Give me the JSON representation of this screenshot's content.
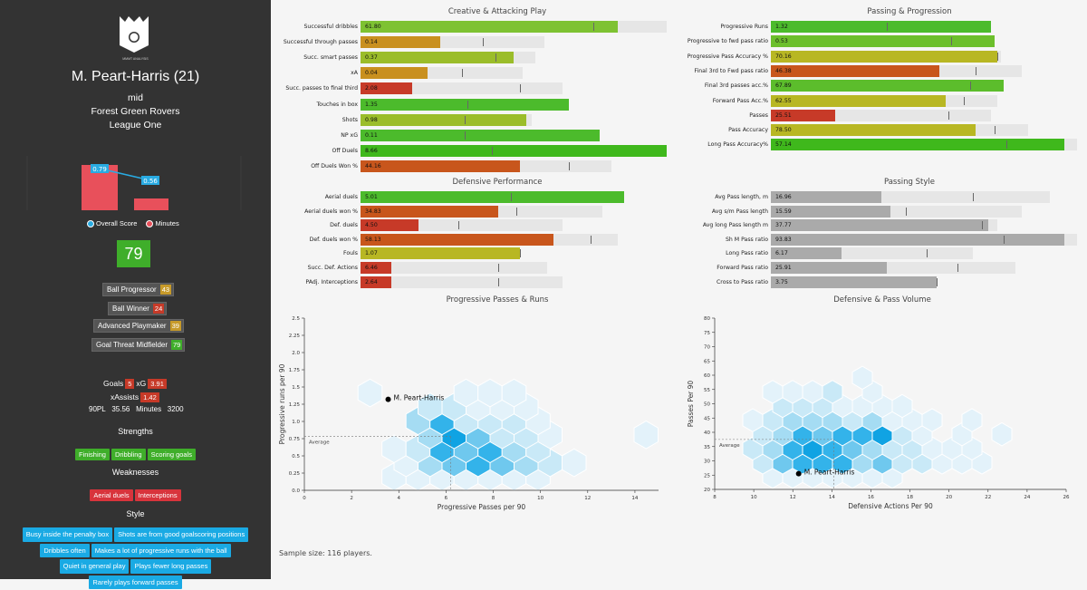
{
  "player": {
    "name": "M. Peart-Harris (21)",
    "position": "mid",
    "club": "Forest Green Rovers",
    "league": "League One",
    "overall": "79",
    "logo_text": "MMMT ANALYSIS"
  },
  "mini_chart": {
    "values": [
      0.79,
      0.56
    ],
    "score_labels": [
      "0.79",
      "0.56"
    ],
    "legend": [
      "Overall Score",
      "Minutes"
    ],
    "colors": {
      "score": "#29abe2",
      "minutes": "#e8505b"
    }
  },
  "roles": [
    {
      "label": "Ball Progressor",
      "value": "43",
      "color": "#c79a2a"
    },
    {
      "label": "Ball Winner",
      "value": "24",
      "color": "#c73a28"
    },
    {
      "label": "Advanced Playmaker",
      "value": "39",
      "color": "#c79a2a"
    },
    {
      "label": "Goal Threat Midfielder",
      "value": "79",
      "color": "#3fae2a"
    }
  ],
  "stats": {
    "goals_label": "Goals",
    "goals": "5",
    "xg_label": "xG",
    "xg": "3.91",
    "xassists_label": "xAssists",
    "xassists": "1.42",
    "p90_label": "90PL",
    "p90": "35.56",
    "minutes_label": "Minutes",
    "minutes": "3200"
  },
  "strengths_title": "Strengths",
  "strengths": [
    "Finishing",
    "Dribbling",
    "Scoring goals"
  ],
  "weaknesses_title": "Weaknesses",
  "weaknesses": [
    "Aerial duels",
    "Interceptions"
  ],
  "style_title": "Style",
  "style_tags": [
    "Busy inside the penalty box",
    "Shots are from good goalscoring positions",
    "Dribbles often",
    "Makes a lot of progressive runs with the ball",
    "Quiet in general play",
    "Plays fewer long passes",
    "Rarely plays forward passes"
  ],
  "panels": [
    {
      "title": "Creative & Attacking Play",
      "rows": [
        {
          "label": "Successful dribbles",
          "value": "61.80",
          "pct": 0.84,
          "avg": 0.76,
          "track": 1.0,
          "color": "#7ec232"
        },
        {
          "label": "Successful through passes",
          "value": "0.14",
          "pct": 0.26,
          "avg": 0.4,
          "track": 0.6,
          "color": "#c9901f"
        },
        {
          "label": "Succ. smart passes",
          "value": "0.37",
          "pct": 0.5,
          "avg": 0.44,
          "track": 0.57,
          "color": "#9bbd2a"
        },
        {
          "label": "xA",
          "value": "0.04",
          "pct": 0.22,
          "avg": 0.33,
          "track": 0.53,
          "color": "#c9901f"
        },
        {
          "label": "Succ. passes to final third",
          "value": "2.08",
          "pct": 0.17,
          "avg": 0.52,
          "track": 0.66,
          "color": "#c73a28"
        },
        {
          "label": "Touches in box",
          "value": "1.35",
          "pct": 0.68,
          "avg": 0.35,
          "track": 0.68,
          "color": "#4cbb2c"
        },
        {
          "label": "Shots",
          "value": "0.98",
          "pct": 0.54,
          "avg": 0.34,
          "track": 0.56,
          "color": "#9bbd2a"
        },
        {
          "label": "NP xG",
          "value": "0.11",
          "pct": 0.78,
          "avg": 0.34,
          "track": 0.78,
          "color": "#4cbb2c"
        },
        {
          "label": "Off Duels",
          "value": "8.66",
          "pct": 1.0,
          "avg": 0.43,
          "track": 1.0,
          "color": "#3fb81c"
        },
        {
          "label": "Off Duels Won %",
          "value": "44.16",
          "pct": 0.52,
          "avg": 0.68,
          "track": 0.82,
          "color": "#c8561c"
        }
      ]
    },
    {
      "title": "Passing & Progression",
      "rows": [
        {
          "label": "Progressive Runs",
          "value": "1.32",
          "pct": 0.72,
          "avg": 0.38,
          "track": 0.72,
          "color": "#4cbb2c"
        },
        {
          "label": "Progressive to fwd pass ratio",
          "value": "0.53",
          "pct": 0.73,
          "avg": 0.59,
          "track": 0.73,
          "color": "#6cbf2c"
        },
        {
          "label": "Progressive Pass Accuracy %",
          "value": "70.16",
          "pct": 0.74,
          "avg": 0.74,
          "track": 0.75,
          "color": "#b8b723"
        },
        {
          "label": "Final 3rd to Fwd pass ratio",
          "value": "46.38",
          "pct": 0.55,
          "avg": 0.67,
          "track": 0.82,
          "color": "#c8561c"
        },
        {
          "label": "Final 3rd passes acc.%",
          "value": "67.89",
          "pct": 0.76,
          "avg": 0.65,
          "track": 0.76,
          "color": "#5cbd2c"
        },
        {
          "label": "Forward Pass Acc.%",
          "value": "62.55",
          "pct": 0.57,
          "avg": 0.63,
          "track": 0.74,
          "color": "#b8b723"
        },
        {
          "label": "Passes",
          "value": "25.51",
          "pct": 0.21,
          "avg": 0.58,
          "track": 0.72,
          "color": "#c73a28"
        },
        {
          "label": "Pass Accuracy",
          "value": "78.50",
          "pct": 0.67,
          "avg": 0.73,
          "track": 0.84,
          "color": "#b8b723"
        },
        {
          "label": "Long Pass Accuracy%",
          "value": "57.14",
          "pct": 0.96,
          "avg": 0.77,
          "track": 1.0,
          "color": "#3fb81c"
        }
      ]
    },
    {
      "title": "Defensive Performance",
      "rows": [
        {
          "label": "Aerial duels",
          "value": "5.01",
          "pct": 0.86,
          "avg": 0.49,
          "track": 0.86,
          "color": "#4cbb2c"
        },
        {
          "label": "Aerial duels won %",
          "value": "34.83",
          "pct": 0.45,
          "avg": 0.51,
          "track": 0.79,
          "color": "#c8561c"
        },
        {
          "label": "Def. duels",
          "value": "4.50",
          "pct": 0.19,
          "avg": 0.32,
          "track": 0.66,
          "color": "#c73a28"
        },
        {
          "label": "Def. duels won %",
          "value": "58.13",
          "pct": 0.63,
          "avg": 0.75,
          "track": 0.84,
          "color": "#c8561c"
        },
        {
          "label": "Fouls",
          "value": "1.07",
          "pct": 0.52,
          "avg": 0.52,
          "track": 0.52,
          "color": "#b8b723"
        },
        {
          "label": "Succ. Def. Actions",
          "value": "6.46",
          "pct": 0.1,
          "avg": 0.45,
          "track": 0.61,
          "color": "#c73a28"
        },
        {
          "label": "PAdj. Interceptions",
          "value": "2.64",
          "pct": 0.1,
          "avg": 0.45,
          "track": 0.66,
          "color": "#c73a28"
        }
      ]
    },
    {
      "title": "Passing Style",
      "rows": [
        {
          "label": "Avg Pass length, m",
          "value": "16.96",
          "pct": 0.36,
          "avg": 0.66,
          "track": 0.91,
          "color": "#aaaaaa"
        },
        {
          "label": "Avg s/m Pass length",
          "value": "15.59",
          "pct": 0.39,
          "avg": 0.44,
          "track": 0.82,
          "color": "#aaaaaa"
        },
        {
          "label": "Avg long Pass length m",
          "value": "37.77",
          "pct": 0.71,
          "avg": 0.69,
          "track": 0.74,
          "color": "#aaaaaa"
        },
        {
          "label": "Sh M Pass ratio",
          "value": "93.83",
          "pct": 0.96,
          "avg": 0.76,
          "track": 1.0,
          "color": "#aaaaaa"
        },
        {
          "label": "Long Pass ratio",
          "value": "6.17",
          "pct": 0.23,
          "avg": 0.51,
          "track": 0.66,
          "color": "#aaaaaa"
        },
        {
          "label": "Forward Pass ratio",
          "value": "25.91",
          "pct": 0.38,
          "avg": 0.61,
          "track": 0.8,
          "color": "#aaaaaa"
        },
        {
          "label": "Cross to Pass ratio",
          "value": "3.75",
          "pct": 0.54,
          "avg": 0.54,
          "track": 0.54,
          "color": "#aaaaaa"
        }
      ]
    }
  ],
  "chart_data": [
    {
      "type": "scatter",
      "title": "Progressive Passes & Runs",
      "xlabel": "Progressive Passes per 90",
      "ylabel": "Progressive runs per 90",
      "xlim": [
        0,
        15
      ],
      "ylim": [
        0,
        2.5
      ],
      "xticks": [
        "0",
        "2",
        "4",
        "6",
        "8",
        "10",
        "12",
        "14"
      ],
      "yticks": [
        "0.0",
        "0.25",
        "0.5",
        "0.75",
        "1.0",
        "1.25",
        "1.5",
        "1.75",
        "2.0",
        "2.25",
        "2.5"
      ],
      "player": {
        "name": "M. Peart-Harris",
        "x": 3.55,
        "y": 1.32
      },
      "average": {
        "label": "Average",
        "x": 6.2,
        "y": 0.78
      }
    },
    {
      "type": "scatter",
      "title": "Defensive & Pass Volume",
      "xlabel": "Defensive Actions Per 90",
      "ylabel": "Passes Per 90",
      "xlim": [
        8,
        26
      ],
      "ylim": [
        20,
        80
      ],
      "xticks": [
        "8",
        "10",
        "12",
        "14",
        "16",
        "18",
        "20",
        "22",
        "24",
        "26"
      ],
      "yticks": [
        "20",
        "25",
        "30",
        "35",
        "40",
        "45",
        "50",
        "55",
        "60",
        "65",
        "70",
        "75",
        "80"
      ],
      "player": {
        "name": "M. Peart-Harris",
        "x": 12.3,
        "y": 25.5
      },
      "average": {
        "label": "Average",
        "x": 14.1,
        "y": 37.5
      }
    }
  ],
  "sample_size": "Sample size: 116 players."
}
